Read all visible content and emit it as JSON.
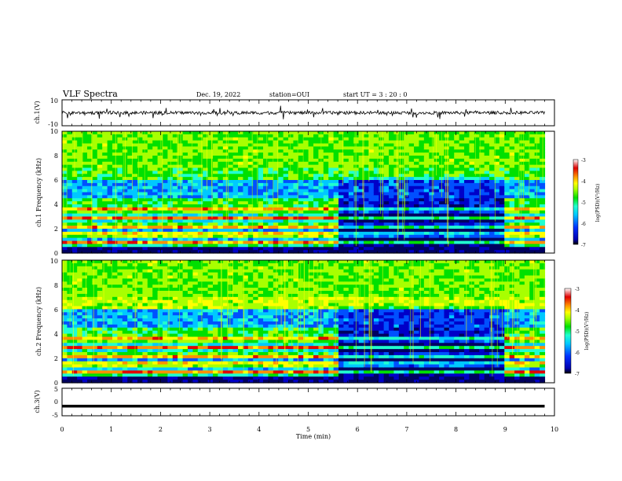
{
  "header": {
    "title": "VLF Spectra",
    "date": "Dec. 19, 2022",
    "station": "station=OUI",
    "start": "start UT =   3 : 20 : 0"
  },
  "colors": {
    "colormap": [
      "#000060",
      "#0000c8",
      "#0050ff",
      "#00c8ff",
      "#20ffd0",
      "#00e000",
      "#a8ff00",
      "#ffff00",
      "#ff9000",
      "#e00000",
      "#ffffff"
    ],
    "trace": "#000000"
  },
  "chart_data": [
    {
      "type": "line",
      "ylabel": "ch.1(V)",
      "ylim": [
        -10,
        10
      ],
      "yticks": [
        "10",
        "-10"
      ],
      "series": [
        {
          "x": [
            0,
            9.8
          ],
          "values": [
            0,
            0
          ]
        }
      ]
    },
    {
      "type": "heatmap",
      "ylabel": "ch.1 Frequency (kHz)",
      "ylim": [
        0,
        10
      ],
      "yticks": [
        "0",
        "2",
        "4",
        "6",
        "8",
        "10"
      ],
      "colorbar": {
        "label": "log(PSD)(V²/Hz)",
        "range": [
          -7,
          -3
        ],
        "ticks": [
          "-3",
          "-4",
          "-5",
          "-6",
          "-7"
        ]
      }
    },
    {
      "type": "heatmap",
      "ylabel": "ch.2 Frequency (kHz)",
      "ylim": [
        0,
        10
      ],
      "yticks": [
        "0",
        "2",
        "4",
        "6",
        "8",
        "10"
      ],
      "colorbar": {
        "label": "log(PSD)(V²/Hz)",
        "range": [
          -7,
          -3
        ],
        "ticks": [
          "-3",
          "-4",
          "-5",
          "-6",
          "-7"
        ]
      }
    },
    {
      "type": "line",
      "ylabel": "ch.3(V)",
      "ylim": [
        -5,
        5
      ],
      "yticks": [
        "5",
        "0",
        "-5"
      ],
      "xlabel": "Time (min)",
      "xlim": [
        0,
        10
      ],
      "xticks": [
        "0",
        "1",
        "2",
        "3",
        "4",
        "5",
        "6",
        "7",
        "8",
        "9",
        "10"
      ],
      "series": [
        {
          "x": [
            0,
            9.8
          ],
          "values": [
            -1.5,
            -1.5
          ]
        }
      ]
    }
  ]
}
